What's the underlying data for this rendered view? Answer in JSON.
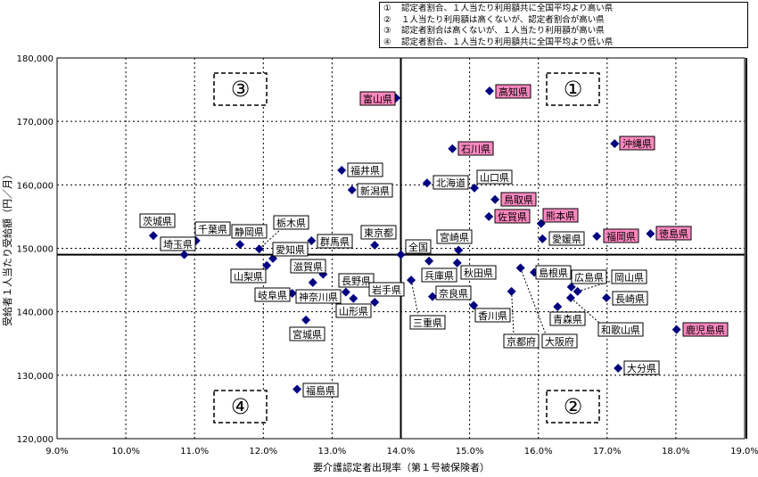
{
  "legend": [
    {
      "num": "①",
      "text": "認定者割合、１人当たり利用額共に全国平均より高い県"
    },
    {
      "num": "②",
      "text": "１人当たり利用額は高くないが、認定者割合が高い県"
    },
    {
      "num": "③",
      "text": "認定者割合は高くないが、１人当たり利用額が高い県"
    },
    {
      "num": "④",
      "text": "認定者割合、１人当たり利用額共に全国平均より低い県"
    }
  ],
  "quadrants": {
    "q1": "①",
    "q2": "②",
    "q3": "③",
    "q4": "④"
  },
  "colors": {
    "marker": "#000080",
    "highlight": "#ff88c0",
    "label_bg": "#ffffff"
  },
  "chart_data": {
    "type": "scatter",
    "title": "",
    "xlabel": "要介護認定者出現率（第１号被保険者）",
    "ylabel": "受給者１人当たり受給額（円／月）",
    "xlim": [
      9.0,
      19.0
    ],
    "ylim": [
      120000,
      180000
    ],
    "xticks": [
      "9.0%",
      "10.0%",
      "11.0%",
      "12.0%",
      "13.0%",
      "14.0%",
      "15.0%",
      "16.0%",
      "17.0%",
      "18.0%",
      "19.0%"
    ],
    "yticks": [
      "120,000",
      "130,000",
      "140,000",
      "150,000",
      "160,000",
      "170,000",
      "180,000"
    ],
    "grid": true,
    "reference_lines": {
      "x": 14.0,
      "y": 149000
    },
    "points": [
      {
        "name": "富山県",
        "x": 13.93,
        "y": 173700,
        "highlight": true
      },
      {
        "name": "高知県",
        "x": 15.29,
        "y": 174800,
        "highlight": true
      },
      {
        "name": "沖縄県",
        "x": 17.11,
        "y": 166500,
        "highlight": true
      },
      {
        "name": "石川県",
        "x": 14.75,
        "y": 165700,
        "highlight": true
      },
      {
        "name": "福井県",
        "x": 13.14,
        "y": 162300,
        "highlight": false
      },
      {
        "name": "新潟県",
        "x": 13.29,
        "y": 159200,
        "highlight": false
      },
      {
        "name": "北海道",
        "x": 14.38,
        "y": 160300,
        "highlight": false
      },
      {
        "name": "山口県",
        "x": 15.07,
        "y": 159500,
        "highlight": false
      },
      {
        "name": "鳥取県",
        "x": 15.37,
        "y": 157700,
        "highlight": true
      },
      {
        "name": "佐賀県",
        "x": 15.28,
        "y": 155000,
        "highlight": true
      },
      {
        "name": "熊本県",
        "x": 16.04,
        "y": 153900,
        "highlight": true
      },
      {
        "name": "愛媛県",
        "x": 16.06,
        "y": 151500,
        "highlight": false
      },
      {
        "name": "福岡県",
        "x": 16.85,
        "y": 151900,
        "highlight": true
      },
      {
        "name": "徳島県",
        "x": 17.63,
        "y": 152300,
        "highlight": true
      },
      {
        "name": "鹿児島県",
        "x": 18.01,
        "y": 137200,
        "highlight": true
      },
      {
        "name": "大分県",
        "x": 17.16,
        "y": 131100,
        "highlight": false
      },
      {
        "name": "長崎県",
        "x": 16.99,
        "y": 142200,
        "highlight": false
      },
      {
        "name": "広島県",
        "x": 16.48,
        "y": 143900,
        "highlight": false
      },
      {
        "name": "岡山県",
        "x": 16.57,
        "y": 143200,
        "highlight": false
      },
      {
        "name": "和歌山県",
        "x": 16.47,
        "y": 142200,
        "highlight": false
      },
      {
        "name": "青森県",
        "x": 16.28,
        "y": 140800,
        "highlight": false
      },
      {
        "name": "島根県",
        "x": 15.94,
        "y": 146200,
        "highlight": false
      },
      {
        "name": "大阪府",
        "x": 15.74,
        "y": 146900,
        "highlight": false
      },
      {
        "name": "京都府",
        "x": 15.61,
        "y": 143200,
        "highlight": false
      },
      {
        "name": "香川県",
        "x": 15.06,
        "y": 141000,
        "highlight": false
      },
      {
        "name": "秋田県",
        "x": 14.82,
        "y": 147700,
        "highlight": false
      },
      {
        "name": "宮崎県",
        "x": 14.84,
        "y": 149700,
        "highlight": false
      },
      {
        "name": "兵庫県",
        "x": 14.41,
        "y": 148000,
        "highlight": false
      },
      {
        "name": "奈良県",
        "x": 14.46,
        "y": 142400,
        "highlight": false
      },
      {
        "name": "三重県",
        "x": 14.15,
        "y": 145000,
        "highlight": false
      },
      {
        "name": "全国",
        "x": 14.0,
        "y": 149000,
        "highlight": false
      },
      {
        "name": "東京都",
        "x": 13.62,
        "y": 150500,
        "highlight": false
      },
      {
        "name": "茨城県",
        "x": 10.4,
        "y": 152000,
        "highlight": false
      },
      {
        "name": "埼玉県",
        "x": 10.85,
        "y": 149000,
        "highlight": false
      },
      {
        "name": "千葉県",
        "x": 11.02,
        "y": 151200,
        "highlight": false
      },
      {
        "name": "静岡県",
        "x": 11.66,
        "y": 150600,
        "highlight": false
      },
      {
        "name": "栃木県",
        "x": 11.94,
        "y": 149900,
        "highlight": false
      },
      {
        "name": "愛知県",
        "x": 12.14,
        "y": 148400,
        "highlight": false
      },
      {
        "name": "山梨県",
        "x": 12.05,
        "y": 147300,
        "highlight": false
      },
      {
        "name": "群馬県",
        "x": 12.7,
        "y": 151200,
        "highlight": false
      },
      {
        "name": "滋賀県",
        "x": 12.87,
        "y": 145900,
        "highlight": false
      },
      {
        "name": "神奈川県",
        "x": 12.72,
        "y": 144600,
        "highlight": false
      },
      {
        "name": "岐阜県",
        "x": 12.42,
        "y": 142900,
        "highlight": false
      },
      {
        "name": "長野県",
        "x": 13.2,
        "y": 143100,
        "highlight": false
      },
      {
        "name": "山形県",
        "x": 13.31,
        "y": 142100,
        "highlight": false
      },
      {
        "name": "岩手県",
        "x": 13.62,
        "y": 141500,
        "highlight": false
      },
      {
        "name": "宮城県",
        "x": 12.62,
        "y": 138700,
        "highlight": false
      },
      {
        "name": "福島県",
        "x": 12.49,
        "y": 127800,
        "highlight": false
      }
    ]
  }
}
